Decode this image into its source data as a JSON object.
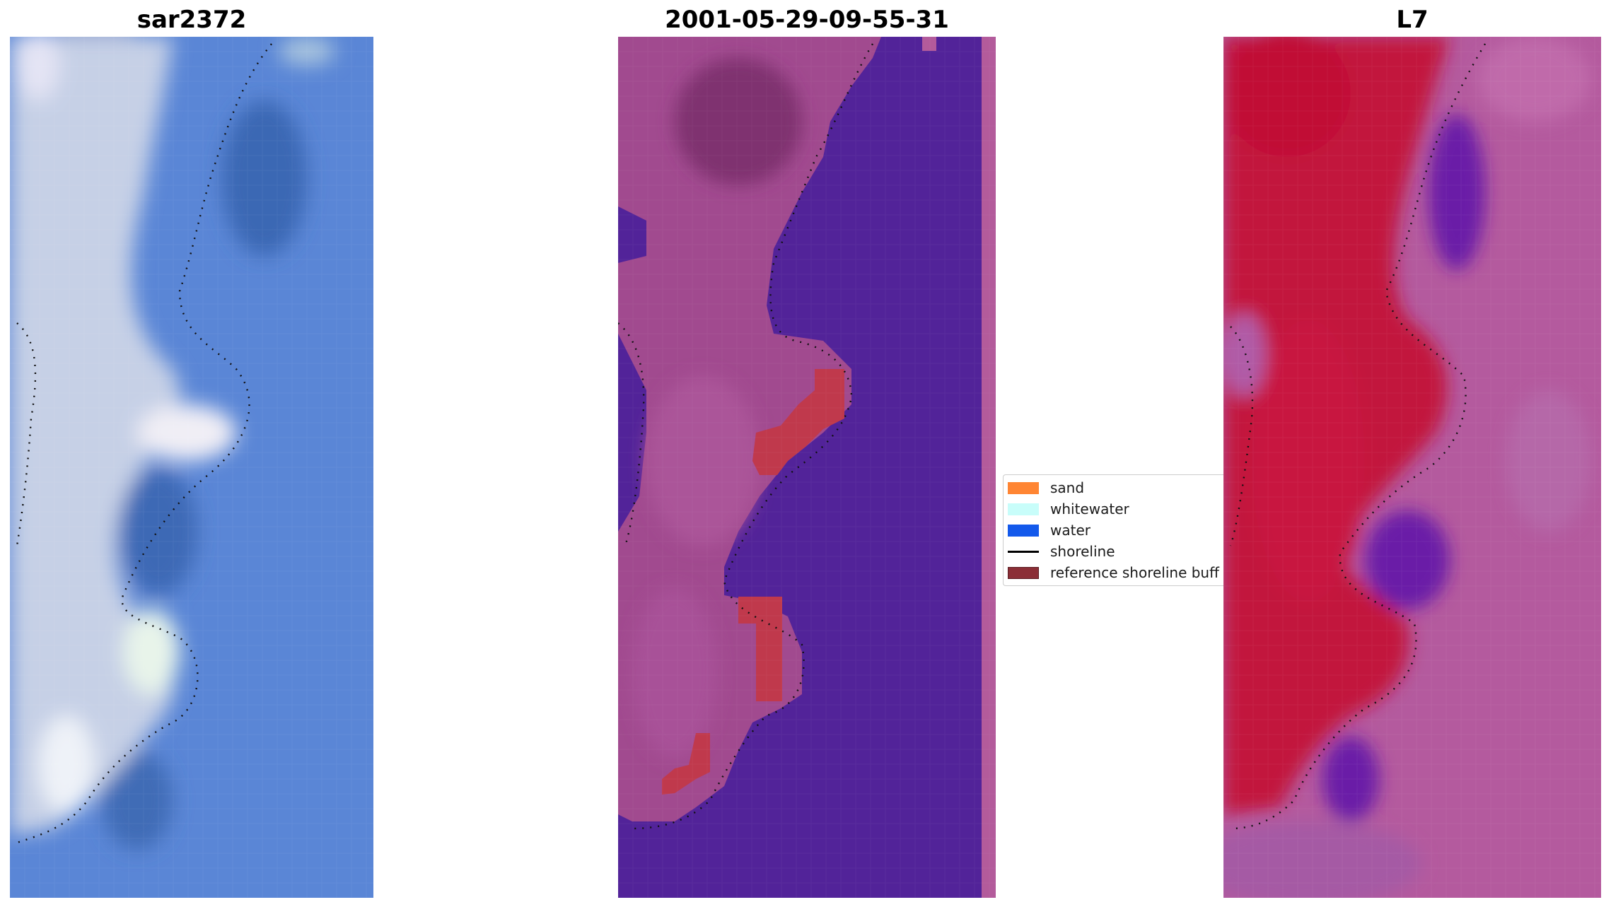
{
  "panels": [
    {
      "title": "sar2372"
    },
    {
      "title": "2001-05-29-09-55-31"
    },
    {
      "title": "L7"
    }
  ],
  "legend": {
    "items": [
      {
        "label": "sand",
        "kind": "patch",
        "color": "#ff8533"
      },
      {
        "label": "whitewater",
        "kind": "patch",
        "color": "#c8fdfa"
      },
      {
        "label": "water",
        "kind": "patch",
        "color": "#1359eb"
      },
      {
        "label": "shoreline",
        "kind": "line",
        "color": "#000000"
      },
      {
        "label": "reference shoreline buff",
        "kind": "patch",
        "color": "#8b2e36"
      }
    ]
  },
  "colors": {
    "water_class": "#522399",
    "buffer_red": "#c0394c",
    "sand_purple": "#a14a8f",
    "rgb_blue": "#5a86d6",
    "rgb_white": "#dfe6f2",
    "ndwi_red": "#c2173e",
    "ndwi_pink": "#b45a9e",
    "ndwi_violet": "#6a1fa7"
  }
}
